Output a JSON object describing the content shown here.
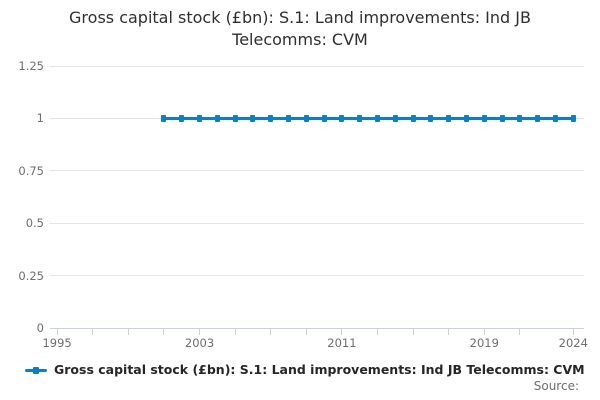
{
  "title": {
    "full": "Gross capital stock (£bn): S.1: Land improvements: Ind JB Telecomms: CVM",
    "lines": [
      "Gross capital stock (£bn): S.1: Land improvements: Ind JB",
      "Telecomms: CVM"
    ]
  },
  "legend": {
    "label": "Gross capital stock (£bn): S.1: Land improvements: Ind JB Telecomms: CVM",
    "marker": "blue-line-with-square-point"
  },
  "source_label": "Source:",
  "colors": {
    "series": "#117dc2",
    "grid": "#e4e4e4",
    "axis": "#c7d2e3",
    "title_text": "#2f2f2f",
    "tick_text": "#6e6e6e",
    "legend_text": "#262626",
    "background": "#ffffff"
  },
  "chart_data": {
    "type": "line",
    "title": "Gross capital stock (£bn): S.1: Land improvements: Ind JB Telecomms: CVM",
    "x": [
      2001,
      2002,
      2003,
      2004,
      2005,
      2006,
      2007,
      2008,
      2009,
      2010,
      2011,
      2012,
      2013,
      2014,
      2015,
      2016,
      2017,
      2018,
      2019,
      2020,
      2021,
      2022,
      2023,
      2024
    ],
    "series": [
      {
        "name": "Gross capital stock (£bn): S.1: Land improvements: Ind JB Telecomms: CVM",
        "values": [
          1,
          1,
          1,
          1,
          1,
          1,
          1,
          1,
          1,
          1,
          1,
          1,
          1,
          1,
          1,
          1,
          1,
          1,
          1,
          1,
          1,
          1,
          1,
          1
        ]
      }
    ],
    "xlim": [
      1994.6,
      2024.6
    ],
    "ylim": [
      0,
      1.25
    ],
    "y_ticks": [
      0,
      0.25,
      0.5,
      0.75,
      1,
      1.25
    ],
    "x_tick_marks": [
      1995,
      1997,
      1999,
      2001,
      2003,
      2005,
      2007,
      2009,
      2011,
      2013,
      2015,
      2017,
      2019,
      2021,
      2024
    ],
    "x_tick_labels": [
      1995,
      2003,
      2011,
      2019,
      2024
    ],
    "grid": "horizontal",
    "marker": "square",
    "legend_position": "bottom-left",
    "source_note": "Source:"
  }
}
